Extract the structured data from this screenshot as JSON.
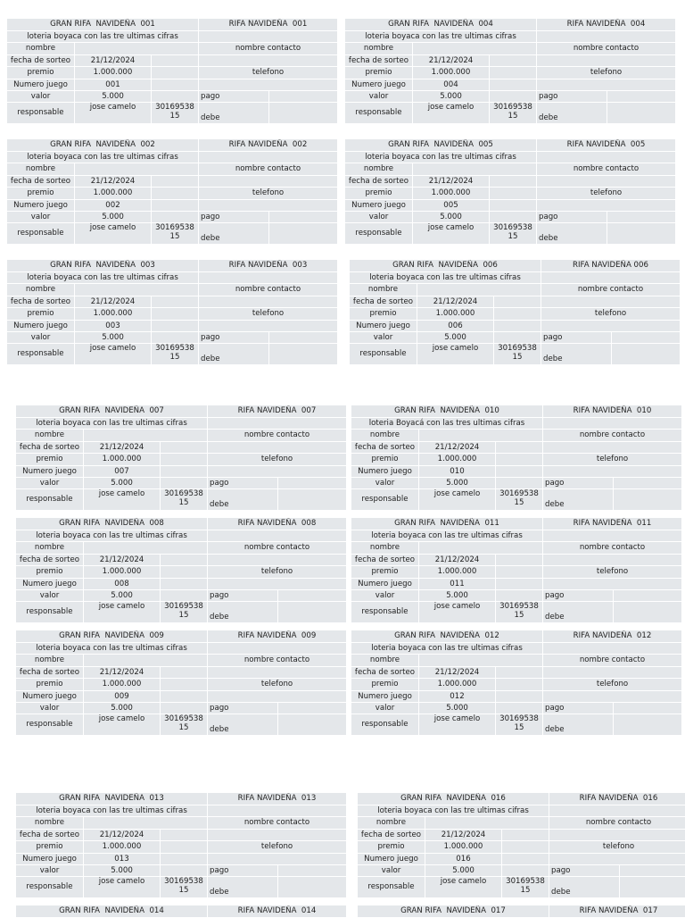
{
  "tickets": [
    {
      "title": "GRAN RIFA  NAVIDEÑA  001",
      "stub_title": "RIFA NAVIDEÑA  001",
      "subtitle": "loteria boyaca con las tre ultimas cifras",
      "name_label": "nombre",
      "contact_label": "nombre contacto",
      "date_label": "fecha de sorteo",
      "date": "21/12/2024",
      "prize_label": "premio",
      "prize": "1.000.000",
      "phone_label": "telefono",
      "number_label": "Numero juego",
      "number": "001",
      "price_label": "valor",
      "price": "5.000",
      "payment_label": "pago",
      "manager_label": "responsable",
      "manager": "jose camelo",
      "manager_phone": "3016953815",
      "balance_label": "debe"
    },
    {
      "title": "GRAN RIFA  NAVIDEÑA  002",
      "stub_title": "RIFA NAVIDEÑA  002",
      "subtitle": "loteria boyaca con las tre ultimas cifras",
      "name_label": "nombre",
      "contact_label": "nombre contacto",
      "date_label": "fecha de sorteo",
      "date": "21/12/2024",
      "prize_label": "premio",
      "prize": "1.000.000",
      "phone_label": "telefono",
      "number_label": "Numero juego",
      "number": "002",
      "price_label": "valor",
      "price": "5.000",
      "payment_label": "pago",
      "manager_label": "responsable",
      "manager": "jose camelo",
      "manager_phone": "3016953815",
      "balance_label": "debe"
    },
    {
      "title": "GRAN RIFA  NAVIDEÑA  003",
      "stub_title": "RIFA NAVIDEÑA  003",
      "subtitle": "loteria boyaca con las tre ultimas cifras",
      "name_label": "nombre",
      "contact_label": "nombre contacto",
      "date_label": "fecha de sorteo",
      "date": "21/12/2024",
      "prize_label": "premio",
      "prize": "1.000.000",
      "phone_label": "telefono",
      "number_label": "Numero juego",
      "number": "003",
      "price_label": "valor",
      "price": "5.000",
      "payment_label": "pago",
      "manager_label": "responsable",
      "manager": "jose camelo",
      "manager_phone": "3016953815",
      "balance_label": "debe"
    },
    {
      "title": "GRAN RIFA  NAVIDEÑA  004",
      "stub_title": "RIFA NAVIDEÑA  004",
      "subtitle": "loteria boyaca con las tre ultimas cifras",
      "name_label": "nombre",
      "contact_label": "nombre contacto",
      "date_label": "fecha de sorteo",
      "date": "21/12/2024",
      "prize_label": "premio",
      "prize": "1.000.000",
      "phone_label": "telefono",
      "number_label": "Numero juego",
      "number": "004",
      "price_label": "valor",
      "price": "5.000",
      "payment_label": "pago",
      "manager_label": "responsable",
      "manager": "jose camelo",
      "manager_phone": "3016953815",
      "balance_label": "debe"
    },
    {
      "title": "GRAN RIFA  NAVIDEÑA  005",
      "stub_title": "RIFA NAVIDEÑA  005",
      "subtitle": "loteria boyaca con las tre ultimas cifras",
      "name_label": "nombre",
      "contact_label": "nombre contacto",
      "date_label": "fecha de sorteo",
      "date": "21/12/2024",
      "prize_label": "premio",
      "prize": "1.000.000",
      "phone_label": "telefono",
      "number_label": "Numero juego",
      "number": "005",
      "price_label": "valor",
      "price": "5.000",
      "payment_label": "pago",
      "manager_label": "responsable",
      "manager": "jose camelo",
      "manager_phone": "3016953815",
      "balance_label": "debe"
    },
    {
      "title": "GRAN RIFA  NAVIDEÑA  006",
      "stub_title": "RIFA NAVIDEÑA 006",
      "subtitle": "loteria boyaca con las tre ultimas cifras",
      "name_label": "nombre",
      "contact_label": "nombre contacto",
      "date_label": "fecha de sorteo",
      "date": "21/12/2024",
      "prize_label": "premio",
      "prize": "1.000.000",
      "phone_label": "telefono",
      "number_label": "Numero juego",
      "number": "006",
      "price_label": "valor",
      "price": "5.000",
      "payment_label": "pago",
      "manager_label": "responsable",
      "manager": "jose camelo",
      "manager_phone": "3016953815",
      "balance_label": "debe"
    },
    {
      "title": "GRAN RIFA  NAVIDEÑA  007",
      "stub_title": "RIFA NAVIDEÑA  007",
      "subtitle": "loteria boyaca con las tre ultimas cifras",
      "name_label": "nombre",
      "contact_label": "nombre contacto",
      "date_label": "fecha de sorteo",
      "date": "21/12/2024",
      "prize_label": "premio",
      "prize": "1.000.000",
      "phone_label": "telefono",
      "number_label": "Numero juego",
      "number": "007",
      "price_label": "valor",
      "price": "5.000",
      "payment_label": "pago",
      "manager_label": "responsable",
      "manager": "jose camelo",
      "manager_phone": "3016953815",
      "balance_label": "debe"
    },
    {
      "title": "GRAN RIFA  NAVIDEÑA  008",
      "stub_title": "RIFA NAVIDEÑA  008",
      "subtitle": "loteria boyaca con las tre ultimas cifras",
      "name_label": "nombre",
      "contact_label": "nombre contacto",
      "date_label": "fecha de sorteo",
      "date": "21/12/2024",
      "prize_label": "premio",
      "prize": "1.000.000",
      "phone_label": "telefono",
      "number_label": "Numero juego",
      "number": "008",
      "price_label": "valor",
      "price": "5.000",
      "payment_label": "pago",
      "manager_label": "responsable",
      "manager": "jose camelo",
      "manager_phone": "3016953815",
      "balance_label": "debe"
    },
    {
      "title": "GRAN RIFA  NAVIDEÑA  009",
      "stub_title": "RIFA NAVIDEÑA  009",
      "subtitle": "loteria boyaca con las tre ultimas cifras",
      "name_label": "nombre",
      "contact_label": "nombre contacto",
      "date_label": "fecha de sorteo",
      "date": "21/12/2024",
      "prize_label": "premio",
      "prize": "1.000.000",
      "phone_label": "telefono",
      "number_label": "Numero juego",
      "number": "009",
      "price_label": "valor",
      "price": "5.000",
      "payment_label": "pago",
      "manager_label": "responsable",
      "manager": "jose camelo",
      "manager_phone": "3016953815",
      "balance_label": "debe"
    },
    {
      "title": "GRAN RIFA  NAVIDEÑA  010",
      "stub_title": "RIFA NAVIDEÑA  010",
      "subtitle": "loteria Boyacá con las tres ultimas cifras",
      "name_label": "nombre",
      "contact_label": "nombre contacto",
      "date_label": "fecha de sorteo",
      "date": "21/12/2024",
      "prize_label": "premio",
      "prize": "1.000.000",
      "phone_label": "telefono",
      "number_label": "Numero juego",
      "number": "010",
      "price_label": "valor",
      "price": "5.000",
      "payment_label": "pago",
      "manager_label": "responsable",
      "manager": "jose camelo",
      "manager_phone": "3016953815",
      "balance_label": "debe"
    },
    {
      "title": "GRAN RIFA  NAVIDEÑA  011",
      "stub_title": "RIFA NAVIDEÑA  011",
      "subtitle": "loteria boyaca con las tre ultimas cifras",
      "name_label": "nombre",
      "contact_label": "nombre contacto",
      "date_label": "fecha de sorteo",
      "date": "21/12/2024",
      "prize_label": "premio",
      "prize": "1.000.000",
      "phone_label": "telefono",
      "number_label": "Numero juego",
      "number": "011",
      "price_label": "valor",
      "price": "5.000",
      "payment_label": "pago",
      "manager_label": "responsable",
      "manager": "jose camelo",
      "manager_phone": "3016953815",
      "balance_label": "debe"
    },
    {
      "title": "GRAN RIFA  NAVIDEÑA  012",
      "stub_title": "RIFA NAVIDEÑA  012",
      "subtitle": "loteria boyaca con las tre ultimas cifras",
      "name_label": "nombre",
      "contact_label": "nombre contacto",
      "date_label": "fecha de sorteo",
      "date": "21/12/2024",
      "prize_label": "premio",
      "prize": "1.000.000",
      "phone_label": "telefono",
      "number_label": "Numero juego",
      "number": "012",
      "price_label": "valor",
      "price": "5.000",
      "payment_label": "pago",
      "manager_label": "responsable",
      "manager": "jose camelo",
      "manager_phone": "3016953815",
      "balance_label": "debe"
    },
    {
      "title": "GRAN RIFA  NAVIDEÑA  013",
      "stub_title": "RIFA NAVIDEÑA  013",
      "subtitle": "loteria boyaca con las tre ultimas cifras",
      "name_label": "nombre",
      "contact_label": "nombre contacto",
      "date_label": "fecha de sorteo",
      "date": "21/12/2024",
      "prize_label": "premio",
      "prize": "1.000.000",
      "phone_label": "telefono",
      "number_label": "Numero juego",
      "number": "013",
      "price_label": "valor",
      "price": "5.000",
      "payment_label": "pago",
      "manager_label": "responsable",
      "manager": "jose camelo",
      "manager_phone": "3016953815",
      "balance_label": "debe"
    },
    {
      "title": "GRAN RIFA  NAVIDEÑA  014",
      "stub_title": "RIFA NAVIDEÑA  014"
    },
    {
      "title": "GRAN RIFA  NAVIDEÑA  016",
      "stub_title": "RIFA NAVIDEÑA  016",
      "subtitle": "loteria boyaca con las tre ultimas cifras",
      "name_label": "nombre",
      "contact_label": "nombre contacto",
      "date_label": "fecha de sorteo",
      "date": "21/12/2024",
      "prize_label": "premio",
      "prize": "1.000.000",
      "phone_label": "telefono",
      "number_label": "Numero juego",
      "number": "016",
      "price_label": "valor",
      "price": "5.000",
      "payment_label": "pago",
      "manager_label": "responsable",
      "manager": "jose camelo",
      "manager_phone": "3016953815",
      "balance_label": "debe"
    },
    {
      "title": "GRAN RIFA  NAVIDEÑA  017",
      "stub_title": "RIFA NAVIDEÑA  017"
    }
  ]
}
